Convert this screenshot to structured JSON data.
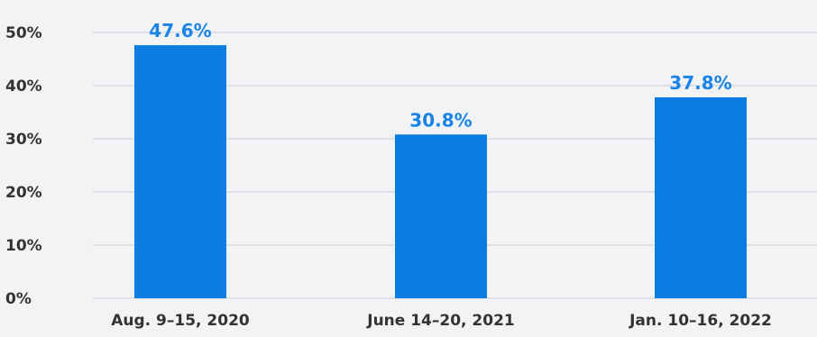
{
  "chart_data": {
    "type": "bar",
    "categories": [
      "Aug. 9–15, 2020",
      "June 14–20, 2021",
      "Jan. 10–16, 2022"
    ],
    "values": [
      47.6,
      30.8,
      37.8
    ],
    "data_labels": [
      "47.6%",
      "30.8%",
      "37.8%"
    ],
    "yticks": [
      0,
      10,
      20,
      30,
      40,
      50
    ],
    "ytick_labels": [
      "0%",
      "10%",
      "20%",
      "30%",
      "40%",
      "50%"
    ],
    "ylim": [
      0,
      50
    ],
    "grid": true,
    "title": "",
    "xlabel": "",
    "ylabel": "",
    "colors": {
      "bar": "#0a7ee0",
      "data_label": "#1a84e6",
      "grid": "#c9ccd1",
      "axis_text": "#333333",
      "background": "#f2f3f5"
    }
  }
}
